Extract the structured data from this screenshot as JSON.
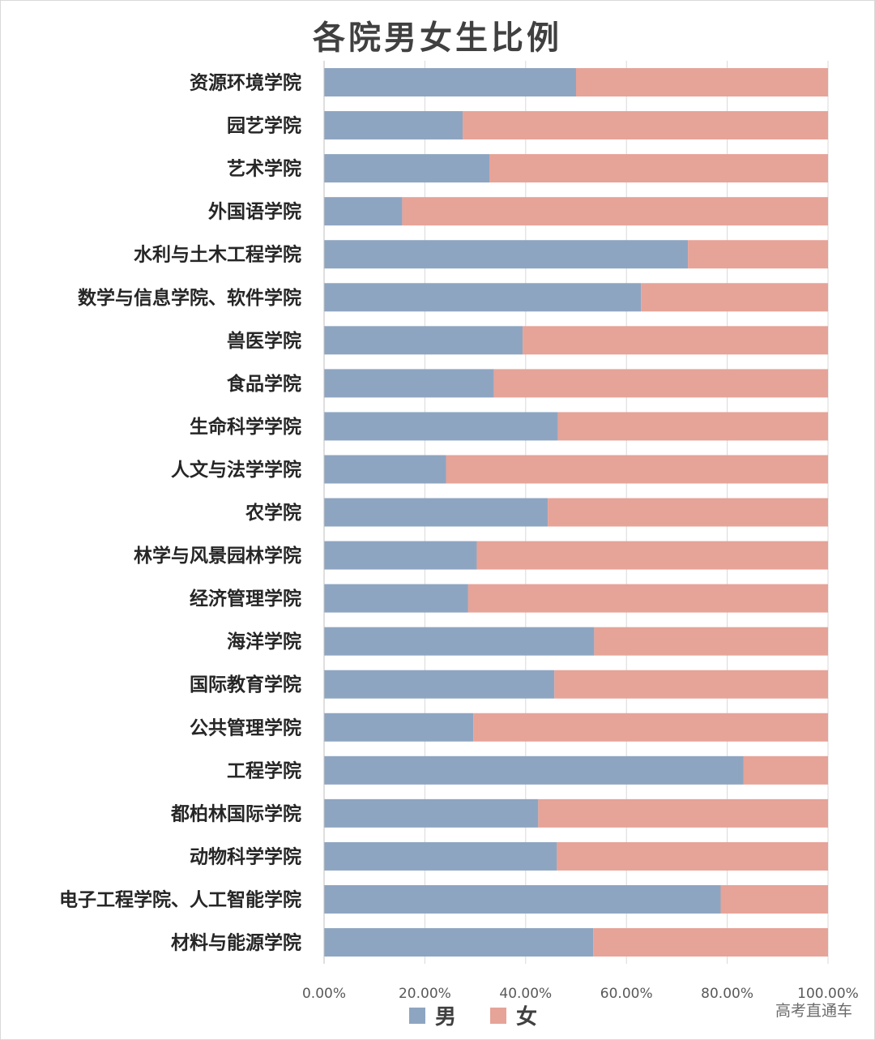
{
  "chart_data": {
    "type": "bar",
    "orientation": "horizontal",
    "stacked": true,
    "title": "各院男女生比例",
    "categories": [
      "资源环境学院",
      "园艺学院",
      "艺术学院",
      "外国语学院",
      "水利与土木工程学院",
      "数学与信息学院、软件学院",
      "兽医学院",
      "食品学院",
      "生命科学学院",
      "人文与法学学院",
      "农学院",
      "林学与风景园林学院",
      "经济管理学院",
      "海洋学院",
      "国际教育学院",
      "公共管理学院",
      "工程学院",
      "都柏林国际学院",
      "动物科学学院",
      "电子工程学院、人工智能学院",
      "材料与能源学院"
    ],
    "series": [
      {
        "name": "男",
        "color": "#8EA5C1",
        "values": [
          50.0,
          27.5,
          32.8,
          15.5,
          72.2,
          62.9,
          39.4,
          33.7,
          46.4,
          24.2,
          44.4,
          30.3,
          28.6,
          53.6,
          45.7,
          29.6,
          83.2,
          42.5,
          46.2,
          78.7,
          53.4
        ]
      },
      {
        "name": "女",
        "color": "#E6A398",
        "values": [
          50.0,
          72.5,
          67.2,
          84.5,
          27.8,
          37.1,
          60.6,
          66.3,
          53.6,
          75.8,
          55.6,
          69.7,
          71.4,
          46.4,
          54.3,
          70.4,
          16.8,
          57.5,
          53.8,
          21.3,
          46.6
        ]
      }
    ],
    "xlim": [
      0,
      100
    ],
    "xticks": [
      "0.00%",
      "20.00%",
      "40.00%",
      "60.00%",
      "80.00%",
      "100.00%"
    ],
    "grid": true,
    "legend_position": "bottom"
  },
  "watermark": "高考直通车"
}
